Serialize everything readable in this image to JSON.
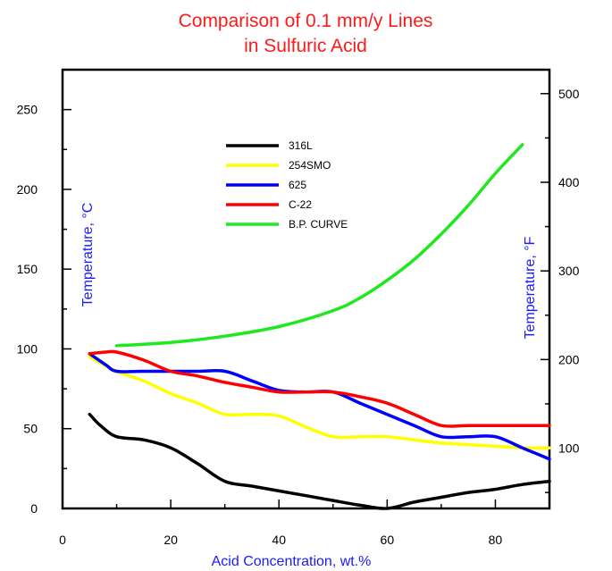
{
  "chart_data": {
    "type": "line",
    "title_lines": [
      "Comparison of 0.1 mm/y Lines",
      "in Sulfuric Acid"
    ],
    "xlabel": "Acid Concentration, wt.%",
    "ylabel_left": "Temperature, °C",
    "ylabel_right": "Temperature, °F",
    "xlim": [
      0,
      90
    ],
    "ylim": [
      0,
      275
    ],
    "x_ticks": [
      0,
      20,
      40,
      60,
      80
    ],
    "y_ticks": [
      0,
      50,
      100,
      150,
      200,
      250
    ],
    "y_right_ticks": [
      100,
      200,
      300,
      400,
      500
    ],
    "grid": false,
    "legend_position": "upper-center",
    "series": [
      {
        "name": "316L",
        "color": "#000000",
        "points": [
          [
            5,
            59
          ],
          [
            7,
            52
          ],
          [
            10,
            45
          ],
          [
            15,
            43
          ],
          [
            20,
            38
          ],
          [
            25,
            28
          ],
          [
            30,
            17
          ],
          [
            35,
            14
          ],
          [
            40,
            11
          ],
          [
            45,
            8
          ],
          [
            50,
            5
          ],
          [
            55,
            2
          ],
          [
            60,
            0
          ],
          [
            65,
            4
          ],
          [
            70,
            7
          ],
          [
            75,
            10
          ],
          [
            80,
            12
          ],
          [
            85,
            15
          ],
          [
            90,
            17
          ]
        ]
      },
      {
        "name": "254SMO",
        "color": "#ffff00",
        "points": [
          [
            5,
            95
          ],
          [
            10,
            86
          ],
          [
            15,
            80
          ],
          [
            20,
            72
          ],
          [
            25,
            66
          ],
          [
            30,
            59
          ],
          [
            35,
            59
          ],
          [
            40,
            58
          ],
          [
            45,
            51
          ],
          [
            50,
            45
          ],
          [
            55,
            45
          ],
          [
            60,
            45
          ],
          [
            65,
            43
          ],
          [
            70,
            41
          ],
          [
            75,
            40
          ],
          [
            80,
            39
          ],
          [
            85,
            38
          ],
          [
            90,
            38
          ]
        ]
      },
      {
        "name": "625",
        "color": "#0000ff",
        "points": [
          [
            5,
            97
          ],
          [
            8,
            90
          ],
          [
            10,
            86
          ],
          [
            15,
            86
          ],
          [
            20,
            86
          ],
          [
            25,
            86
          ],
          [
            30,
            86
          ],
          [
            35,
            80
          ],
          [
            40,
            74
          ],
          [
            45,
            73
          ],
          [
            50,
            73
          ],
          [
            55,
            66
          ],
          [
            60,
            59
          ],
          [
            65,
            52
          ],
          [
            70,
            45
          ],
          [
            75,
            45
          ],
          [
            80,
            45
          ],
          [
            85,
            38
          ],
          [
            90,
            31
          ]
        ]
      },
      {
        "name": "C-22",
        "color": "#ff0000",
        "points": [
          [
            5,
            97
          ],
          [
            8,
            98
          ],
          [
            10,
            98
          ],
          [
            15,
            93
          ],
          [
            20,
            86
          ],
          [
            25,
            83
          ],
          [
            30,
            79
          ],
          [
            35,
            76
          ],
          [
            40,
            73
          ],
          [
            45,
            73
          ],
          [
            50,
            73
          ],
          [
            55,
            70
          ],
          [
            60,
            66
          ],
          [
            65,
            59
          ],
          [
            70,
            52
          ],
          [
            75,
            52
          ],
          [
            80,
            52
          ],
          [
            85,
            52
          ],
          [
            90,
            52
          ]
        ]
      },
      {
        "name": "B.P. CURVE",
        "color": "#1ee81e",
        "points": [
          [
            10,
            102
          ],
          [
            20,
            104
          ],
          [
            30,
            108
          ],
          [
            40,
            114
          ],
          [
            50,
            124
          ],
          [
            55,
            132
          ],
          [
            60,
            143
          ],
          [
            65,
            156
          ],
          [
            70,
            172
          ],
          [
            75,
            190
          ],
          [
            80,
            210
          ],
          [
            85,
            228
          ]
        ]
      }
    ]
  }
}
